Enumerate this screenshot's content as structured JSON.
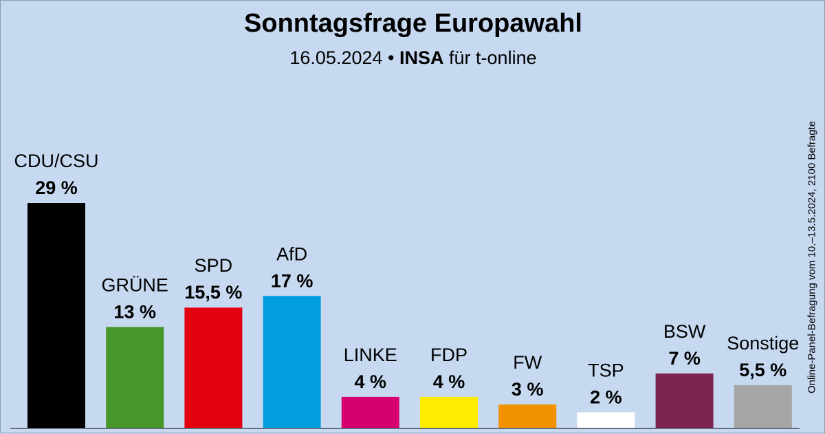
{
  "title": "Sonntagsfrage Europawahl",
  "subtitle": {
    "date": "16.05.2024",
    "separator": "•",
    "institute": "INSA",
    "client": "für t-online"
  },
  "side_note": "Online-Panel-Befragung vom 10.–13.5.2024, 2100 Befragte",
  "chart_data": {
    "type": "bar",
    "categories": [
      "CDU/CSU",
      "GRÜNE",
      "SPD",
      "AfD",
      "LINKE",
      "FDP",
      "FW",
      "TSP",
      "BSW",
      "Sonstige"
    ],
    "values": [
      29,
      13,
      15.5,
      17,
      4,
      4,
      3,
      2,
      7,
      5.5
    ],
    "value_labels": [
      "29 %",
      "13 %",
      "15,5 %",
      "17 %",
      "4 %",
      "4 %",
      "3 %",
      "2 %",
      "7 %",
      "5,5 %"
    ],
    "colors": [
      "#000000",
      "#46962b",
      "#e3000f",
      "#009ee0",
      "#d6006e",
      "#ffed00",
      "#f39200",
      "#ffffff",
      "#7d2450",
      "#a6a6a6"
    ],
    "ylim": [
      0,
      29
    ],
    "grid": false,
    "legend": false
  }
}
